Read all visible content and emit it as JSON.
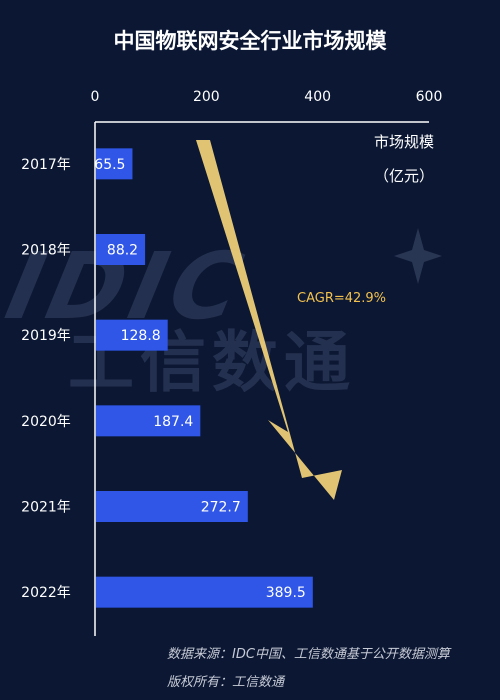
{
  "chart_data": {
    "type": "bar",
    "orientation": "horizontal",
    "title": "中国物联网安全行业市场规模",
    "categories": [
      "2017年",
      "2018年",
      "2019年",
      "2020年",
      "2021年",
      "2022年"
    ],
    "values": [
      65.5,
      88.2,
      128.8,
      187.4,
      272.7,
      389.5
    ],
    "value_labels": [
      "65.5",
      "88.2",
      "128.8",
      "187.4",
      "272.7",
      "389.5"
    ],
    "xlim": [
      0,
      600
    ],
    "x_ticks": [
      "0",
      "200",
      "400",
      "600"
    ],
    "axis_position": "top",
    "unit_label_line1": "市场规模",
    "unit_label_line2": "（亿元）",
    "annotation": "CAGR=42.9%",
    "bar_color": "#2f56e6",
    "arrow_color": "#f7d77a",
    "grid": false
  },
  "watermark": {
    "logo_text": "IDIC",
    "text": "工信数通"
  },
  "source": {
    "line1": "数据来源：IDC中国、工信数通基于公开数据测算",
    "line2": "版权所有：工信数通"
  },
  "colors": {
    "background": "#0b1733",
    "axis": "#ffffff"
  }
}
